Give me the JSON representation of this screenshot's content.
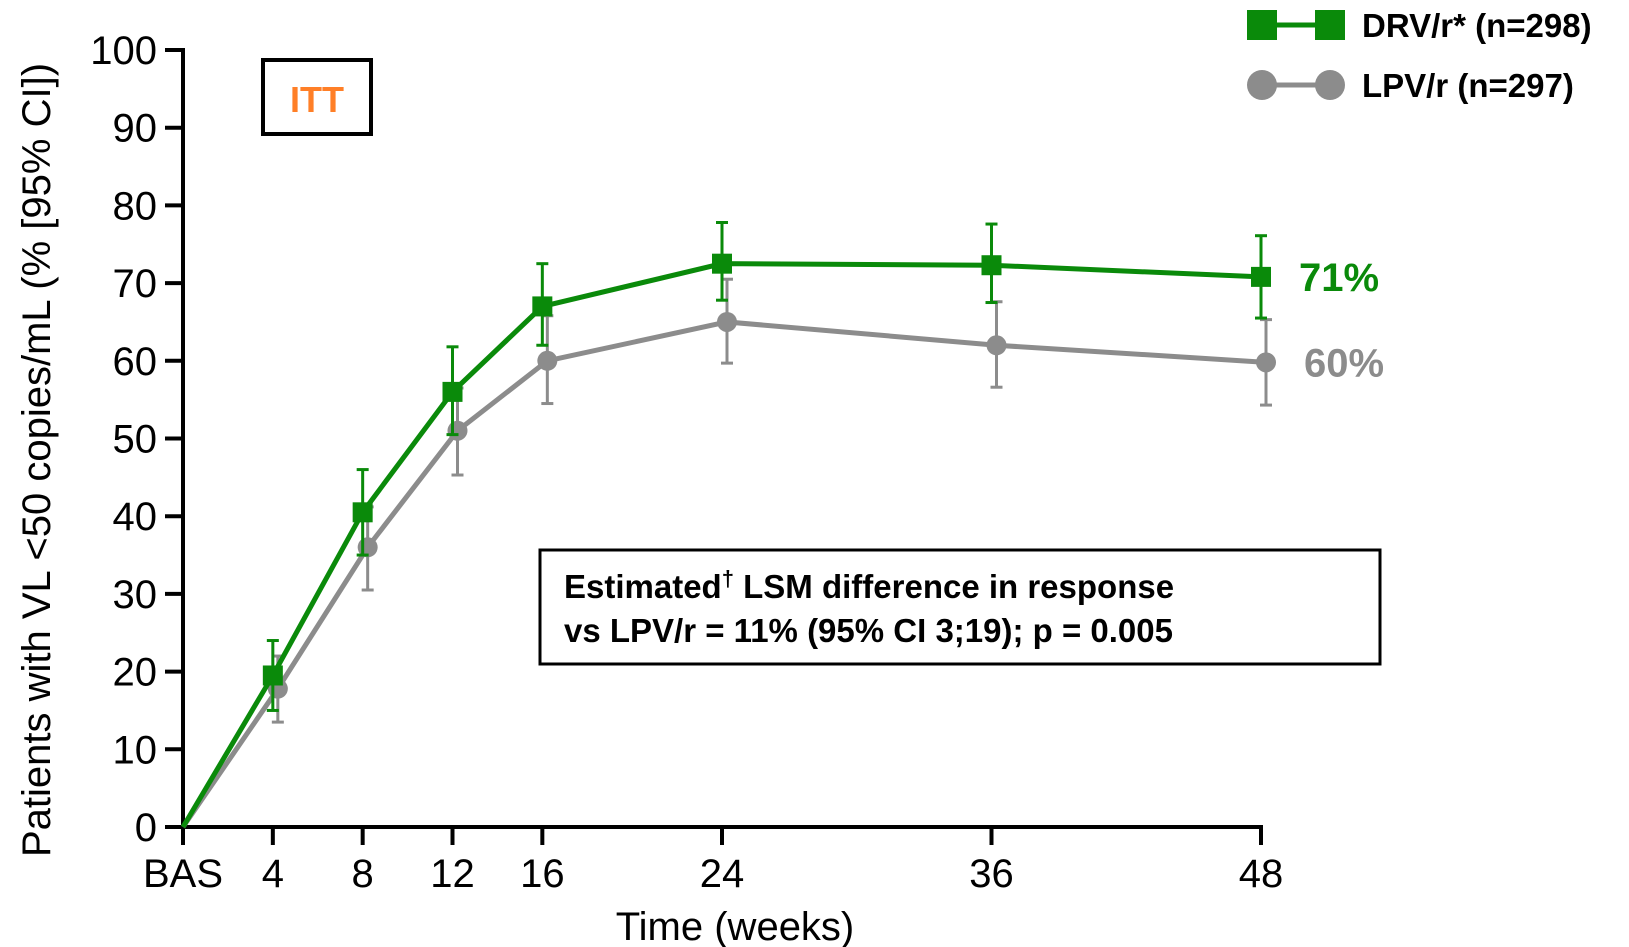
{
  "chart_data": {
    "type": "line",
    "xlabel": "Time (weeks)",
    "ylabel": "Patients with VL <50 copies/mL (% [95% CI])",
    "ylim": [
      0,
      100
    ],
    "yticks": [
      0,
      10,
      20,
      30,
      40,
      50,
      60,
      70,
      80,
      90,
      100
    ],
    "x": [
      0,
      4,
      8,
      12,
      16,
      24,
      36,
      48
    ],
    "xtick_labels": [
      "BAS",
      "4",
      "8",
      "12",
      "16",
      "24",
      "36",
      "48"
    ],
    "xlim": [
      0,
      48
    ],
    "grid": false,
    "legend_position": "top-right",
    "series": [
      {
        "name": "DRV/r* (n=298)",
        "color": "#0a8a0a",
        "marker": "square",
        "values": [
          0,
          19.5,
          40.5,
          56,
          67,
          72.5,
          72.3,
          70.8
        ],
        "ci_low": [
          null,
          15,
          35,
          50.5,
          62,
          67.8,
          67.5,
          65.5
        ],
        "ci_high": [
          null,
          24,
          46,
          61.8,
          72.5,
          77.8,
          77.6,
          76.1
        ],
        "end_label": "71%"
      },
      {
        "name": "LPV/r (n=297)",
        "color": "#8c8c8c",
        "marker": "circle",
        "values": [
          0,
          17.8,
          36,
          51,
          60,
          65,
          62,
          59.8
        ],
        "ci_low": [
          null,
          13.5,
          30.5,
          45.3,
          54.5,
          59.7,
          56.6,
          54.3
        ],
        "ci_high": [
          null,
          22,
          41.2,
          56.5,
          65.8,
          70.5,
          67.6,
          65.3
        ],
        "end_label": "60%"
      }
    ],
    "annotations": {
      "badge": "ITT",
      "badge_color": "#ff7f27",
      "box_line1": "Estimated",
      "box_dagger": "†",
      "box_line1_rest": " LSM difference in response",
      "box_line2": "vs LPV/r = 11% (95% CI 3;19); p = 0.005"
    }
  }
}
